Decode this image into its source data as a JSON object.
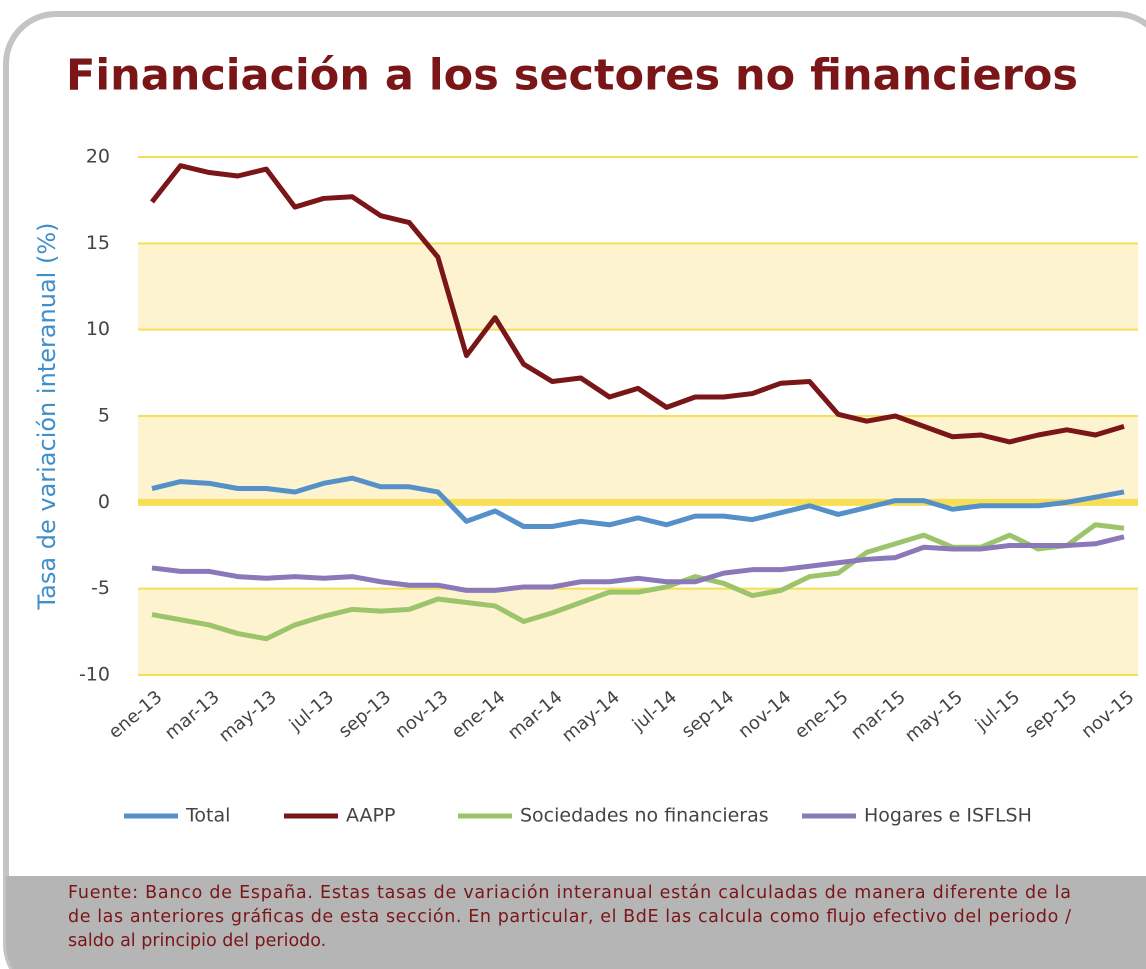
{
  "chart_data": {
    "type": "line",
    "title": "Financiación a los sectores no financieros",
    "y_label": "Tasa de variación interanual (%)",
    "categories": [
      "ene-13",
      null,
      "mar-13",
      null,
      "may-13",
      null,
      "jul-13",
      null,
      "sep-13",
      null,
      "nov-13",
      null,
      "ene-14",
      null,
      "mar-14",
      null,
      "may-14",
      null,
      "jul-14",
      null,
      "sep-14",
      null,
      "nov-14",
      null,
      "ene-15",
      null,
      "mar-15",
      null,
      "may-15",
      null,
      "jul-15",
      null,
      "sep-15",
      null,
      "nov-15"
    ],
    "series": [
      {
        "name": "Total",
        "color": "#5590c8",
        "values": [
          0.8,
          1.2,
          1.1,
          0.8,
          0.8,
          0.6,
          1.1,
          1.4,
          0.9,
          0.9,
          0.6,
          -1.1,
          -0.5,
          -1.4,
          -1.4,
          -1.1,
          -1.3,
          -0.9,
          -1.3,
          -0.8,
          -0.8,
          -1.0,
          -0.6,
          -0.2,
          -0.7,
          -0.3,
          0.1,
          0.1,
          -0.4,
          -0.2,
          -0.2,
          -0.2,
          0.0,
          0.3,
          0.6
        ]
      },
      {
        "name": "AAPP",
        "color": "#7a1518",
        "values": [
          17.4,
          19.5,
          19.1,
          18.9,
          19.3,
          17.1,
          17.6,
          17.7,
          16.6,
          16.2,
          14.2,
          8.5,
          10.7,
          8.0,
          7.0,
          7.2,
          6.1,
          6.6,
          5.5,
          6.1,
          6.1,
          6.3,
          6.9,
          7.0,
          5.1,
          4.7,
          5.0,
          4.4,
          3.8,
          3.9,
          3.5,
          3.9,
          4.2,
          3.9,
          4.4
        ]
      },
      {
        "name": "Sociedades no financieras",
        "color": "#9cc46a",
        "values": [
          -6.5,
          -6.8,
          -7.1,
          -7.6,
          -7.9,
          -7.1,
          -6.6,
          -6.2,
          -6.3,
          -6.2,
          -5.6,
          -5.8,
          -6.0,
          -6.9,
          -6.4,
          -5.8,
          -5.2,
          -5.2,
          -4.9,
          -4.3,
          -4.7,
          -5.4,
          -5.1,
          -4.3,
          -4.1,
          -2.9,
          -2.4,
          -1.9,
          -2.6,
          -2.6,
          -1.9,
          -2.7,
          -2.5,
          -1.3,
          -1.5
        ]
      },
      {
        "name": "Hogares e ISFLSH",
        "color": "#8a78b8",
        "values": [
          -3.8,
          -4.0,
          -4.0,
          -4.3,
          -4.4,
          -4.3,
          -4.4,
          -4.3,
          -4.6,
          -4.8,
          -4.8,
          -5.1,
          -5.1,
          -4.9,
          -4.9,
          -4.6,
          -4.6,
          -4.4,
          -4.6,
          -4.6,
          -4.1,
          -3.9,
          -3.9,
          -3.7,
          -3.5,
          -3.3,
          -3.2,
          -2.6,
          -2.7,
          -2.7,
          -2.5,
          -2.5,
          -2.5,
          -2.4,
          -2.0
        ]
      }
    ],
    "ylim": [
      -10,
      20
    ],
    "yticks": [
      20,
      15,
      10,
      5,
      0,
      -5,
      -10
    ],
    "grid": true,
    "source": [
      "Fuente: Banco de España. Estas tasas de variación interanual están calculadas de manera diferente de la",
      "de las anteriores gráficas de esta sección. En particular, el BdE las calcula como flujo efectivo del periodo /",
      "saldo al principio del periodo."
    ]
  }
}
